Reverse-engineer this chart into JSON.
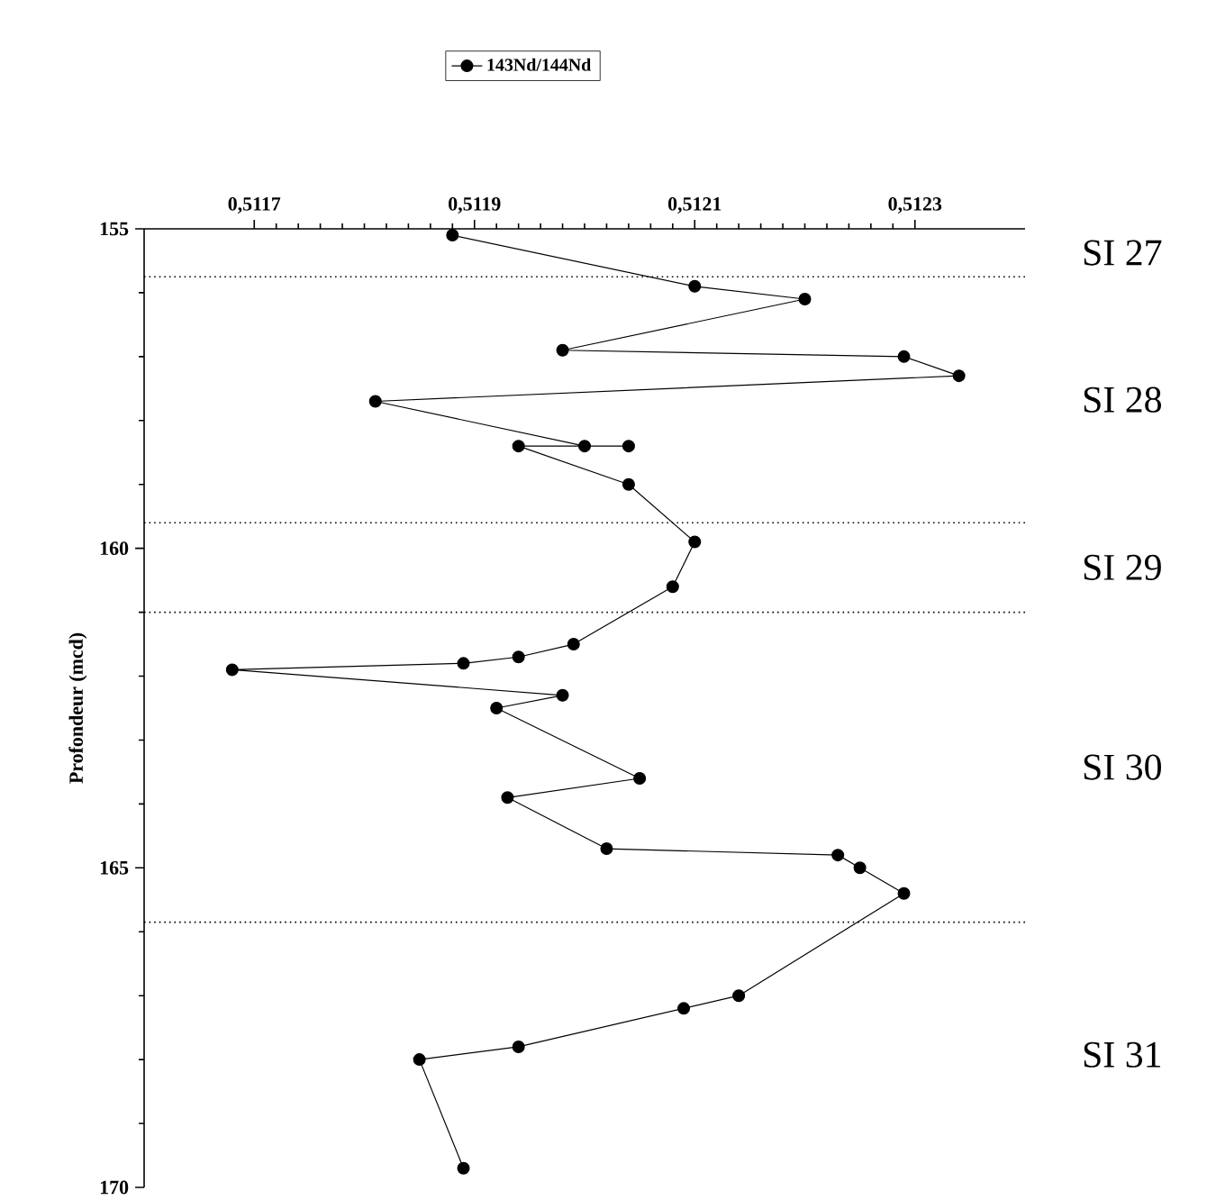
{
  "chart_data": {
    "type": "line",
    "ylabel": "Profondeur (mcd)",
    "series": [
      {
        "name": "143Nd/144Nd",
        "color": "#000000",
        "marker": "circle",
        "line_style": "solid",
        "x": [
          0.51188,
          0.5121,
          0.5122,
          0.51198,
          0.51229,
          0.51234,
          0.51181,
          0.512,
          0.51204,
          0.51194,
          0.51204,
          0.5121,
          0.51208,
          0.51199,
          0.51194,
          0.51189,
          0.51168,
          0.51198,
          0.51192,
          0.51205,
          0.51193,
          0.51202,
          0.51223,
          0.51225,
          0.51229,
          0.51214,
          0.51209,
          0.51194,
          0.51185,
          0.51189
        ],
        "values": [
          155.1,
          155.9,
          156.1,
          156.9,
          157.0,
          157.3,
          157.7,
          158.4,
          158.4,
          158.4,
          159.0,
          159.9,
          160.6,
          161.5,
          161.7,
          161.8,
          161.9,
          162.3,
          162.5,
          163.6,
          163.9,
          164.7,
          164.8,
          165.0,
          165.4,
          167.0,
          167.2,
          167.8,
          168.0,
          169.7
        ]
      }
    ],
    "xlim": [
      0.5116,
      0.5124
    ],
    "xticks": [
      {
        "value": 0.5117,
        "label": "0,5117"
      },
      {
        "value": 0.5119,
        "label": "0,5119"
      },
      {
        "value": 0.5121,
        "label": "0,5121"
      },
      {
        "value": 0.5123,
        "label": "0,5123"
      }
    ],
    "ylim": [
      170,
      155
    ],
    "yticks": [
      155,
      160,
      165,
      170
    ],
    "ref_lines": [
      {
        "axis": "y",
        "value": 155.75,
        "line_style": "dotted",
        "color": "#000000"
      },
      {
        "axis": "y",
        "value": 159.6,
        "line_style": "dotted",
        "color": "#000000"
      },
      {
        "axis": "y",
        "value": 161.0,
        "line_style": "dotted",
        "color": "#000000"
      },
      {
        "axis": "y",
        "value": 165.85,
        "line_style": "dotted",
        "color": "#000000"
      }
    ],
    "annotations": [
      "SI 27",
      "SI 28",
      "SI 29",
      "SI 30",
      "SI 31"
    ],
    "grid": false,
    "legend": "top"
  }
}
